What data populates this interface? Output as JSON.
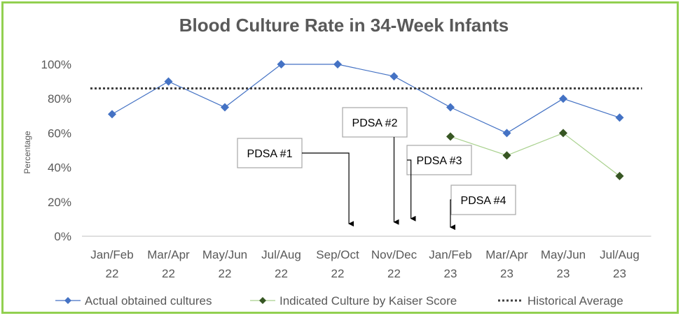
{
  "chart_data": {
    "type": "line",
    "title": "Blood Culture Rate in 34-Week Infants",
    "ylabel": "Percentage",
    "xlabel": "",
    "ylim": [
      0,
      100
    ],
    "yticks": [
      "0%",
      "20%",
      "40%",
      "60%",
      "80%",
      "100%"
    ],
    "yticks_values": [
      0,
      20,
      40,
      60,
      80,
      100
    ],
    "categories": [
      [
        "Jan/Feb",
        "22"
      ],
      [
        "Mar/Apr",
        "22"
      ],
      [
        "May/Jun",
        "22"
      ],
      [
        "Jul/Aug",
        "22"
      ],
      [
        "Sep/Oct",
        "22"
      ],
      [
        "Nov/Dec",
        "22"
      ],
      [
        "Jan/Feb",
        "23"
      ],
      [
        "Mar/Apr",
        "23"
      ],
      [
        "May/Jun",
        "23"
      ],
      [
        "Jul/Aug",
        "23"
      ]
    ],
    "series": [
      {
        "name": "Actual obtained cultures",
        "color": "#4472c4",
        "marker": "diamond",
        "values": [
          71,
          90,
          75,
          100,
          100,
          93,
          75,
          60,
          80,
          69
        ]
      },
      {
        "name": "Indicated Culture by Kaiser Score",
        "color": "#a9d18e",
        "marker_color": "#375623",
        "marker": "diamond",
        "values": [
          null,
          null,
          null,
          null,
          null,
          null,
          58,
          47,
          60,
          35
        ]
      },
      {
        "name": "Historical Average",
        "color": "#404040",
        "style": "dotted",
        "values": [
          86,
          86,
          86,
          86,
          86,
          86,
          86,
          86,
          86,
          86
        ]
      }
    ],
    "annotations": [
      {
        "label": "PDSA #1",
        "x": 4.2,
        "y": 4
      },
      {
        "label": "PDSA #2",
        "x": 5.0,
        "y": 5
      },
      {
        "label": "PDSA #3",
        "x": 5.3,
        "y": 7
      },
      {
        "label": "PDSA #4",
        "x": 6.0,
        "y": 2
      }
    ],
    "legend_position": "bottom",
    "grid": false
  }
}
